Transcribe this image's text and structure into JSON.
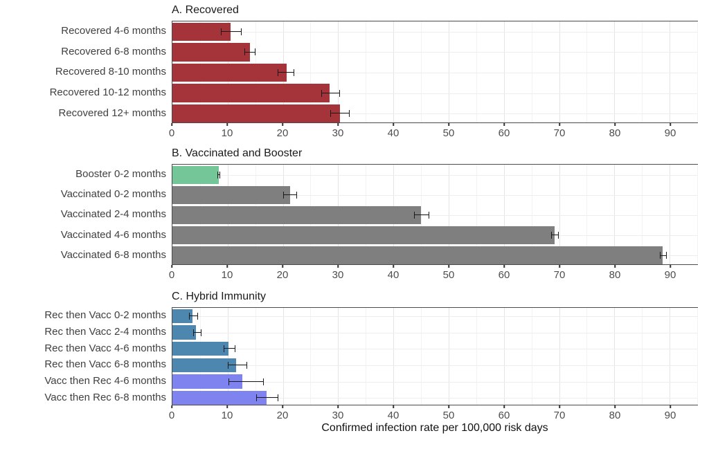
{
  "figure": {
    "xlabel": "Confirmed infection rate per 100,000 risk days"
  },
  "chart_data": [
    {
      "type": "bar",
      "orientation": "horizontal",
      "title": "A. Recovered",
      "categories": [
        "Recovered 4-6 months",
        "Recovered 6-8 months",
        "Recovered 8-10 months",
        "Recovered 10-12 months",
        "Recovered 12+ months"
      ],
      "values": [
        10.5,
        14.0,
        20.7,
        28.5,
        30.3
      ],
      "error_low": [
        8.8,
        13.0,
        19.1,
        27.0,
        28.6
      ],
      "error_high": [
        12.5,
        15.0,
        22.1,
        30.3,
        32.1
      ],
      "colors": [
        "#A4343A",
        "#A4343A",
        "#A4343A",
        "#A4343A",
        "#A4343A"
      ],
      "xlim": [
        0,
        95
      ],
      "xticks": [
        0,
        10,
        20,
        30,
        40,
        50,
        60,
        70,
        80,
        90
      ],
      "grid": true,
      "legend": "none"
    },
    {
      "type": "bar",
      "orientation": "horizontal",
      "title": "B. Vaccinated and Booster",
      "categories": [
        "Booster 0-2 months",
        "Vaccinated 0-2 months",
        "Vaccinated 2-4 months",
        "Vaccinated 4-6 months",
        "Vaccinated 6-8 months"
      ],
      "values": [
        8.4,
        21.3,
        45.0,
        69.2,
        88.7
      ],
      "error_low": [
        8.1,
        20.0,
        43.8,
        68.6,
        88.2
      ],
      "error_high": [
        8.7,
        22.6,
        46.5,
        69.9,
        89.5
      ],
      "colors": [
        "#74C698",
        "#7F7F7F",
        "#7F7F7F",
        "#7F7F7F",
        "#7F7F7F"
      ],
      "xlim": [
        0,
        95
      ],
      "xticks": [
        0,
        10,
        20,
        30,
        40,
        50,
        60,
        70,
        80,
        90
      ],
      "grid": true,
      "legend": "none"
    },
    {
      "type": "bar",
      "orientation": "horizontal",
      "title": "C. Hybrid Immunity",
      "categories": [
        "Rec then Vacc 0-2 months",
        "Rec then Vacc 2-4 months",
        "Rec then Vacc 4-6 months",
        "Rec then Vacc 6-8 months",
        "Vacc then Rec 4-6 months",
        "Vacc then Rec 6-8 months"
      ],
      "values": [
        3.6,
        4.3,
        10.2,
        11.5,
        12.7,
        17.0
      ],
      "error_low": [
        3.0,
        3.7,
        9.3,
        10.0,
        10.1,
        15.2
      ],
      "error_high": [
        4.7,
        5.3,
        11.4,
        13.5,
        16.5,
        19.2
      ],
      "colors": [
        "#4D87B0",
        "#4D87B0",
        "#4D87B0",
        "#4D87B0",
        "#7F83EF",
        "#7F83EF"
      ],
      "xlim": [
        0,
        95
      ],
      "xticks": [
        0,
        10,
        20,
        30,
        40,
        50,
        60,
        70,
        80,
        90
      ],
      "grid": true,
      "legend": "none"
    }
  ]
}
